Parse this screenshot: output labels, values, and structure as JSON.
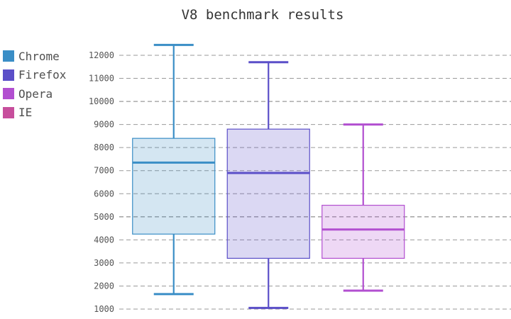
{
  "chart_data": {
    "type": "box",
    "title": "V8 benchmark results",
    "xlabel": "",
    "ylabel": "",
    "ylim": [
      1000,
      12500
    ],
    "y_ticks": [
      1000,
      2000,
      3000,
      4000,
      5000,
      6000,
      7000,
      8000,
      9000,
      10000,
      11000,
      12000
    ],
    "grid": "horizontal dashed",
    "legend_position": "left",
    "series": [
      {
        "name": "Chrome",
        "color": "#3a8ec6",
        "min": 1650,
        "q1": 4250,
        "median": 7350,
        "q3": 8400,
        "max": 12450
      },
      {
        "name": "Firefox",
        "color": "#5b4fc8",
        "min": 1050,
        "q1": 3200,
        "median": 6900,
        "q3": 8800,
        "max": 11700
      },
      {
        "name": "Opera",
        "color": "#b24fd0",
        "min": 1800,
        "q1": 3200,
        "median": 4450,
        "q3": 5500,
        "max": 9000
      },
      {
        "name": "IE",
        "color": "#c74e9c"
      }
    ]
  }
}
